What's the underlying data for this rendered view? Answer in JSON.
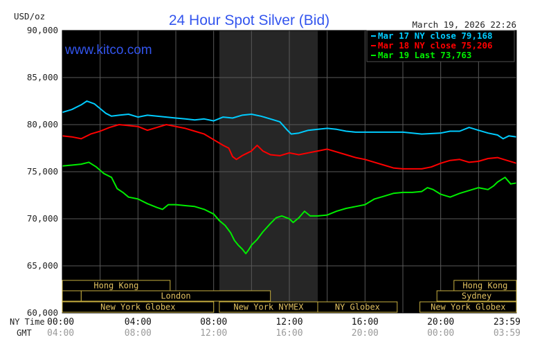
{
  "chart_data": {
    "type": "line",
    "title": "24 Hour Spot Silver (Bid)",
    "unit_label": "USD/oz",
    "timestamp": "March 19, 2026 22:26",
    "watermark": "www.kitco.com",
    "ylim": [
      60000,
      90000
    ],
    "y_ticks": [
      "90,000",
      "85,000",
      "80,000",
      "75,000",
      "70,000",
      "65,000",
      "60,000"
    ],
    "x_ticks_ny": [
      "00:00",
      "04:00",
      "08:00",
      "12:00",
      "16:00",
      "20:00",
      "23:59"
    ],
    "x_ticks_gmt": [
      "04:00",
      "08:00",
      "12:00",
      "16:00",
      "20:00",
      "00:00",
      "03:59"
    ],
    "row_label_ny": "NY Time",
    "row_label_gmt": "GMT",
    "grid": true,
    "legend_position": "top-right",
    "series": [
      {
        "name": "Mar 17 NY close 79,168",
        "color": "#00ccff",
        "points": [
          [
            0,
            81300
          ],
          [
            0.5,
            81600
          ],
          [
            1,
            82100
          ],
          [
            1.3,
            82500
          ],
          [
            1.7,
            82200
          ],
          [
            2,
            81700
          ],
          [
            2.3,
            81200
          ],
          [
            2.6,
            80900
          ],
          [
            3,
            81000
          ],
          [
            3.5,
            81100
          ],
          [
            4,
            80800
          ],
          [
            4.5,
            81000
          ],
          [
            5,
            80900
          ],
          [
            5.5,
            80800
          ],
          [
            6,
            80700
          ],
          [
            6.5,
            80600
          ],
          [
            7,
            80500
          ],
          [
            7.5,
            80600
          ],
          [
            8,
            80400
          ],
          [
            8.5,
            80800
          ],
          [
            9,
            80700
          ],
          [
            9.5,
            81000
          ],
          [
            10,
            81100
          ],
          [
            10.5,
            80900
          ],
          [
            11,
            80600
          ],
          [
            11.5,
            80300
          ],
          [
            11.9,
            79400
          ],
          [
            12.1,
            79000
          ],
          [
            12.5,
            79100
          ],
          [
            13,
            79400
          ],
          [
            13.5,
            79500
          ],
          [
            14,
            79600
          ],
          [
            14.5,
            79500
          ],
          [
            15,
            79300
          ],
          [
            15.5,
            79200
          ],
          [
            16,
            79200
          ],
          [
            17,
            79200
          ],
          [
            18,
            79200
          ],
          [
            19,
            79000
          ],
          [
            20,
            79100
          ],
          [
            20.5,
            79300
          ],
          [
            21,
            79300
          ],
          [
            21.5,
            79700
          ],
          [
            22,
            79400
          ],
          [
            22.5,
            79100
          ],
          [
            23,
            78900
          ],
          [
            23.3,
            78500
          ],
          [
            23.6,
            78800
          ],
          [
            24,
            78700
          ]
        ]
      },
      {
        "name": "Mar 18 NY close 75,206",
        "color": "#ff0000",
        "points": [
          [
            0,
            78800
          ],
          [
            0.5,
            78700
          ],
          [
            1,
            78500
          ],
          [
            1.5,
            79000
          ],
          [
            2,
            79300
          ],
          [
            2.5,
            79700
          ],
          [
            3,
            80000
          ],
          [
            3.5,
            79900
          ],
          [
            4,
            79800
          ],
          [
            4.5,
            79400
          ],
          [
            5,
            79700
          ],
          [
            5.5,
            80000
          ],
          [
            6,
            79800
          ],
          [
            6.5,
            79600
          ],
          [
            7,
            79300
          ],
          [
            7.5,
            79000
          ],
          [
            8,
            78400
          ],
          [
            8.5,
            77800
          ],
          [
            8.8,
            77500
          ],
          [
            9,
            76600
          ],
          [
            9.2,
            76300
          ],
          [
            9.5,
            76700
          ],
          [
            9.8,
            77000
          ],
          [
            10,
            77200
          ],
          [
            10.3,
            77800
          ],
          [
            10.6,
            77200
          ],
          [
            11,
            76800
          ],
          [
            11.5,
            76700
          ],
          [
            12,
            77000
          ],
          [
            12.5,
            76800
          ],
          [
            13,
            77000
          ],
          [
            13.5,
            77200
          ],
          [
            14,
            77400
          ],
          [
            14.5,
            77100
          ],
          [
            15,
            76800
          ],
          [
            15.5,
            76500
          ],
          [
            16,
            76300
          ],
          [
            16.5,
            76000
          ],
          [
            17,
            75700
          ],
          [
            17.5,
            75400
          ],
          [
            18,
            75300
          ],
          [
            18.5,
            75300
          ],
          [
            19,
            75300
          ],
          [
            19.5,
            75500
          ],
          [
            20,
            75900
          ],
          [
            20.5,
            76200
          ],
          [
            21,
            76300
          ],
          [
            21.5,
            76000
          ],
          [
            22,
            76100
          ],
          [
            22.5,
            76400
          ],
          [
            23,
            76500
          ],
          [
            23.5,
            76200
          ],
          [
            24,
            75900
          ]
        ]
      },
      {
        "name": "Mar 19 Last 73,763",
        "color": "#00ee00",
        "points": [
          [
            0,
            75600
          ],
          [
            0.5,
            75700
          ],
          [
            1,
            75800
          ],
          [
            1.4,
            76000
          ],
          [
            1.8,
            75500
          ],
          [
            2.2,
            74800
          ],
          [
            2.6,
            74400
          ],
          [
            2.9,
            73200
          ],
          [
            3.2,
            72800
          ],
          [
            3.5,
            72300
          ],
          [
            4,
            72100
          ],
          [
            4.5,
            71600
          ],
          [
            5,
            71200
          ],
          [
            5.3,
            71000
          ],
          [
            5.6,
            71500
          ],
          [
            6,
            71500
          ],
          [
            6.5,
            71400
          ],
          [
            7,
            71300
          ],
          [
            7.5,
            71000
          ],
          [
            8,
            70500
          ],
          [
            8.3,
            69800
          ],
          [
            8.6,
            69300
          ],
          [
            8.9,
            68500
          ],
          [
            9.1,
            67700
          ],
          [
            9.3,
            67200
          ],
          [
            9.5,
            66800
          ],
          [
            9.7,
            66300
          ],
          [
            9.85,
            66700
          ],
          [
            10,
            67200
          ],
          [
            10.3,
            67800
          ],
          [
            10.6,
            68600
          ],
          [
            11,
            69500
          ],
          [
            11.3,
            70100
          ],
          [
            11.6,
            70300
          ],
          [
            12,
            70000
          ],
          [
            12.2,
            69600
          ],
          [
            12.5,
            70100
          ],
          [
            12.8,
            70800
          ],
          [
            13.1,
            70300
          ],
          [
            13.5,
            70300
          ],
          [
            14,
            70400
          ],
          [
            14.5,
            70800
          ],
          [
            15,
            71100
          ],
          [
            15.5,
            71300
          ],
          [
            16,
            71500
          ],
          [
            16.5,
            72100
          ],
          [
            17,
            72400
          ],
          [
            17.5,
            72700
          ],
          [
            18,
            72800
          ],
          [
            18.5,
            72800
          ],
          [
            19,
            72900
          ],
          [
            19.3,
            73300
          ],
          [
            19.6,
            73100
          ],
          [
            20,
            72600
          ],
          [
            20.5,
            72300
          ],
          [
            21,
            72700
          ],
          [
            21.5,
            73000
          ],
          [
            22,
            73300
          ],
          [
            22.5,
            73100
          ],
          [
            22.8,
            73500
          ],
          [
            23,
            73900
          ],
          [
            23.4,
            74400
          ],
          [
            23.7,
            73700
          ],
          [
            24,
            73800
          ]
        ]
      }
    ],
    "session_rows": [
      [
        {
          "label": "Hong Kong",
          "start": 0,
          "end": 5.7
        },
        {
          "label": "Hong Kong",
          "start": 20.7,
          "end": 24
        }
      ],
      [
        {
          "label": "",
          "start": 0,
          "end": 1
        },
        {
          "label": "London",
          "start": 1,
          "end": 11
        },
        {
          "label": "Sydney",
          "start": 19.8,
          "end": 24
        }
      ],
      [
        {
          "label": "New York Globex",
          "start": 0,
          "end": 8
        },
        {
          "label": "New York NYMEX",
          "start": 8.3,
          "end": 13.5
        },
        {
          "label": "NY Globex",
          "start": 13.5,
          "end": 17.7
        },
        {
          "label": "New York Globex",
          "start": 18.9,
          "end": 24
        }
      ]
    ],
    "shaded_hours": [
      8.3,
      13.5
    ]
  }
}
